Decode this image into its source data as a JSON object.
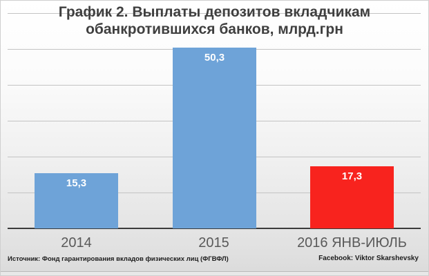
{
  "slide": {
    "title_lines": [
      "График 2. Выплаты депозитов вкладчикам",
      "обанкротившихся банков, млрд.грн"
    ],
    "footer_left": "Источник: Фонд гарантирования вкладов физических лиц (ФГВФЛ)",
    "footer_right": "Facebook: Viktor Skarshevsky"
  },
  "chart_data": {
    "type": "bar",
    "title": "График 2. Выплаты депозитов вкладчикам обанкротившихся банков, млрд.грн",
    "categories": [
      "2014",
      "2015",
      "2016 ЯНВ-ИЮЛЬ"
    ],
    "values": [
      15.3,
      50.3,
      17.3
    ],
    "value_labels": [
      "15,3",
      "50,3",
      "17,3"
    ],
    "bar_colors": [
      "#6EA3D8",
      "#6EA3D8",
      "#F8231E"
    ],
    "xlabel": "",
    "ylabel": "",
    "unit": "млрд.грн",
    "ylim": [
      0,
      60
    ],
    "gridline_step": 10,
    "grid": true,
    "legend": false
  },
  "colors": {
    "blue_bar": "#6EA3D8",
    "red_bar": "#F8231E",
    "title_text": "#3F3F3F",
    "category_text": "#595959",
    "value_text": "#FFFFFF",
    "axis_line": "#3A3A3A",
    "gridline": "#C3C3C3"
  }
}
